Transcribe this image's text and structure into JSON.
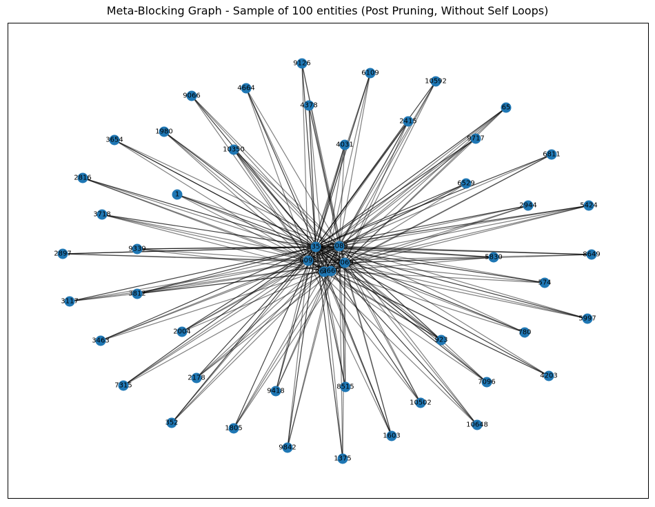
{
  "title": "Meta-Blocking Graph - Sample of 100 entities (Post Pruning, Without Self Loops)",
  "node_color": "#1f77b4",
  "edge_color": "#000000",
  "hubs": [
    {
      "id": "hub-1",
      "label": "5351"
    },
    {
      "id": "hub-2",
      "label": "3089"
    },
    {
      "id": "hub-3",
      "label": "6095"
    },
    {
      "id": "hub-4",
      "label": "7069"
    },
    {
      "id": "hub-5",
      "label": "2660"
    },
    {
      "id": "hub-6",
      "label": "3660"
    }
  ],
  "nodes": [
    {
      "label": "9126",
      "hubs": [
        0,
        1,
        2,
        3
      ]
    },
    {
      "label": "6109",
      "hubs": [
        0,
        1,
        2,
        4
      ]
    },
    {
      "label": "10592",
      "hubs": [
        0,
        1,
        3,
        5
      ]
    },
    {
      "label": "65",
      "hubs": [
        0,
        1,
        2,
        3,
        4
      ]
    },
    {
      "label": "4664",
      "hubs": [
        0,
        1,
        2,
        5
      ]
    },
    {
      "label": "4378",
      "hubs": [
        0,
        1,
        3,
        4
      ]
    },
    {
      "label": "9066",
      "hubs": [
        0,
        1,
        2,
        3
      ]
    },
    {
      "label": "2415",
      "hubs": [
        0,
        1,
        2,
        3,
        4
      ]
    },
    {
      "label": "9717",
      "hubs": [
        0,
        1,
        2,
        3
      ]
    },
    {
      "label": "1980",
      "hubs": [
        0,
        2,
        3,
        5
      ]
    },
    {
      "label": "4031",
      "hubs": [
        0,
        1,
        2,
        4
      ]
    },
    {
      "label": "6811",
      "hubs": [
        0,
        1,
        3,
        5
      ]
    },
    {
      "label": "3654",
      "hubs": [
        0,
        1,
        2,
        3
      ]
    },
    {
      "label": "10350",
      "hubs": [
        0,
        1,
        2,
        3,
        4
      ]
    },
    {
      "label": "6529",
      "hubs": [
        0,
        1,
        2,
        4
      ]
    },
    {
      "label": "2816",
      "hubs": [
        0,
        2,
        3,
        5
      ]
    },
    {
      "label": "1",
      "hubs": [
        0,
        1,
        2,
        3
      ]
    },
    {
      "label": "2944",
      "hubs": [
        0,
        1,
        3,
        5
      ]
    },
    {
      "label": "5424",
      "hubs": [
        0,
        1,
        2,
        3,
        4
      ]
    },
    {
      "label": "3718",
      "hubs": [
        0,
        2,
        3,
        4
      ]
    },
    {
      "label": "2897",
      "hubs": [
        0,
        1,
        2,
        3
      ]
    },
    {
      "label": "9339",
      "hubs": [
        0,
        1,
        2,
        5
      ]
    },
    {
      "label": "5830",
      "hubs": [
        0,
        1,
        3,
        4
      ]
    },
    {
      "label": "8649",
      "hubs": [
        0,
        1,
        2,
        3
      ]
    },
    {
      "label": "574",
      "hubs": [
        0,
        1,
        3,
        5
      ]
    },
    {
      "label": "3117",
      "hubs": [
        0,
        2,
        3,
        4
      ]
    },
    {
      "label": "3812",
      "hubs": [
        0,
        1,
        2,
        3,
        5
      ]
    },
    {
      "label": "5997",
      "hubs": [
        0,
        1,
        2,
        3
      ]
    },
    {
      "label": "2004",
      "hubs": [
        0,
        1,
        2,
        4
      ]
    },
    {
      "label": "780",
      "hubs": [
        0,
        1,
        3,
        5
      ]
    },
    {
      "label": "3463",
      "hubs": [
        0,
        1,
        2,
        3
      ]
    },
    {
      "label": "923",
      "hubs": [
        0,
        1,
        2,
        3,
        4
      ]
    },
    {
      "label": "4203",
      "hubs": [
        0,
        1,
        2,
        5
      ]
    },
    {
      "label": "7315",
      "hubs": [
        0,
        1,
        2,
        3
      ]
    },
    {
      "label": "2178",
      "hubs": [
        0,
        1,
        3,
        4
      ]
    },
    {
      "label": "7096",
      "hubs": [
        0,
        1,
        2,
        3
      ]
    },
    {
      "label": "9418",
      "hubs": [
        0,
        1,
        2,
        5
      ]
    },
    {
      "label": "8515",
      "hubs": [
        0,
        1,
        3,
        4
      ]
    },
    {
      "label": "10502",
      "hubs": [
        0,
        1,
        2,
        3
      ]
    },
    {
      "label": "352",
      "hubs": [
        0,
        1,
        2,
        4
      ]
    },
    {
      "label": "1805",
      "hubs": [
        0,
        1,
        3,
        5
      ]
    },
    {
      "label": "10648",
      "hubs": [
        0,
        1,
        2,
        3
      ]
    },
    {
      "label": "1603",
      "hubs": [
        0,
        1,
        2,
        3,
        4
      ]
    },
    {
      "label": "9842",
      "hubs": [
        0,
        1,
        2,
        5
      ]
    },
    {
      "label": "1375",
      "hubs": [
        0,
        1,
        3,
        4
      ]
    }
  ]
}
